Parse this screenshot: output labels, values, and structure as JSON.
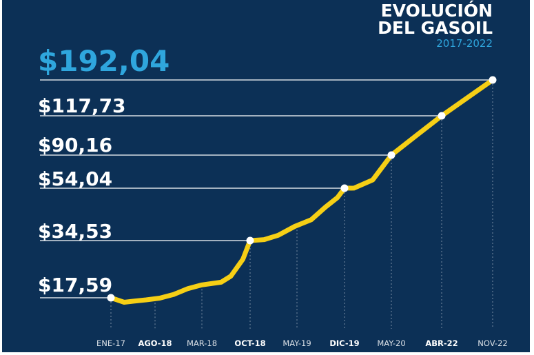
{
  "header": {
    "title_line1": "EVOLUCIÓN",
    "title_line2": "DEL GASOIL",
    "period": "2017-2022"
  },
  "colors": {
    "background": "#0c3056",
    "line": "#f6cf15",
    "highlight_price": "#2fa6dd",
    "text": "#ffffff",
    "guides": "#ffffff"
  },
  "chart_data": {
    "type": "line",
    "title": "EVOLUCIÓN DEL GASOIL",
    "subtitle": "2017-2022",
    "x_labels": [
      "ENE-17",
      "AGO-18",
      "MAR-18",
      "OCT-18",
      "MAY-19",
      "DIC-19",
      "MAY-20",
      "ABR-22",
      "NOV-22"
    ],
    "x_labels_bold": [
      false,
      true,
      false,
      true,
      false,
      true,
      false,
      true,
      false
    ],
    "price_labels": [
      "$192,04",
      "$117,73",
      "$90,16",
      "$54,04",
      "$34,53",
      "$17,59"
    ],
    "marked_points": [
      {
        "x": "ENE-17",
        "y": 17.59
      },
      {
        "x": "OCT-18",
        "y": 34.53
      },
      {
        "x": "DIC-19",
        "y": 54.04
      },
      {
        "x": "MAY-20",
        "y": 90.16
      },
      {
        "x": "ABR-22",
        "y": 117.73
      },
      {
        "x": "NOV-22",
        "y": 192.04
      }
    ],
    "series": [
      {
        "values": [
          {
            "x": 0,
            "y": 17.59
          },
          {
            "x": 0.3,
            "y": 16.3
          },
          {
            "x": 0.5,
            "y": 16.6
          },
          {
            "x": 0.8,
            "y": 17.0
          },
          {
            "x": 1.1,
            "y": 17.5
          },
          {
            "x": 1.4,
            "y": 18.6
          },
          {
            "x": 1.7,
            "y": 20.3
          },
          {
            "x": 2.0,
            "y": 21.4
          },
          {
            "x": 2.4,
            "y": 22.2
          },
          {
            "x": 2.6,
            "y": 24.0
          },
          {
            "x": 2.85,
            "y": 29.0
          },
          {
            "x": 3.0,
            "y": 34.53
          },
          {
            "x": 3.3,
            "y": 34.9
          },
          {
            "x": 3.6,
            "y": 36.5
          },
          {
            "x": 3.95,
            "y": 39.8
          },
          {
            "x": 4.3,
            "y": 42.3
          },
          {
            "x": 4.6,
            "y": 47.0
          },
          {
            "x": 4.85,
            "y": 50.5
          },
          {
            "x": 5.0,
            "y": 54.04
          },
          {
            "x": 5.2,
            "y": 54.1
          },
          {
            "x": 5.6,
            "y": 63.0
          },
          {
            "x": 6.0,
            "y": 90.16
          },
          {
            "x": 6.5,
            "y": 104.0
          },
          {
            "x": 7.0,
            "y": 117.73
          },
          {
            "x": 8.0,
            "y": 192.04
          }
        ]
      }
    ],
    "grid": "dotted vertical guides at each x label",
    "legend": "none"
  }
}
